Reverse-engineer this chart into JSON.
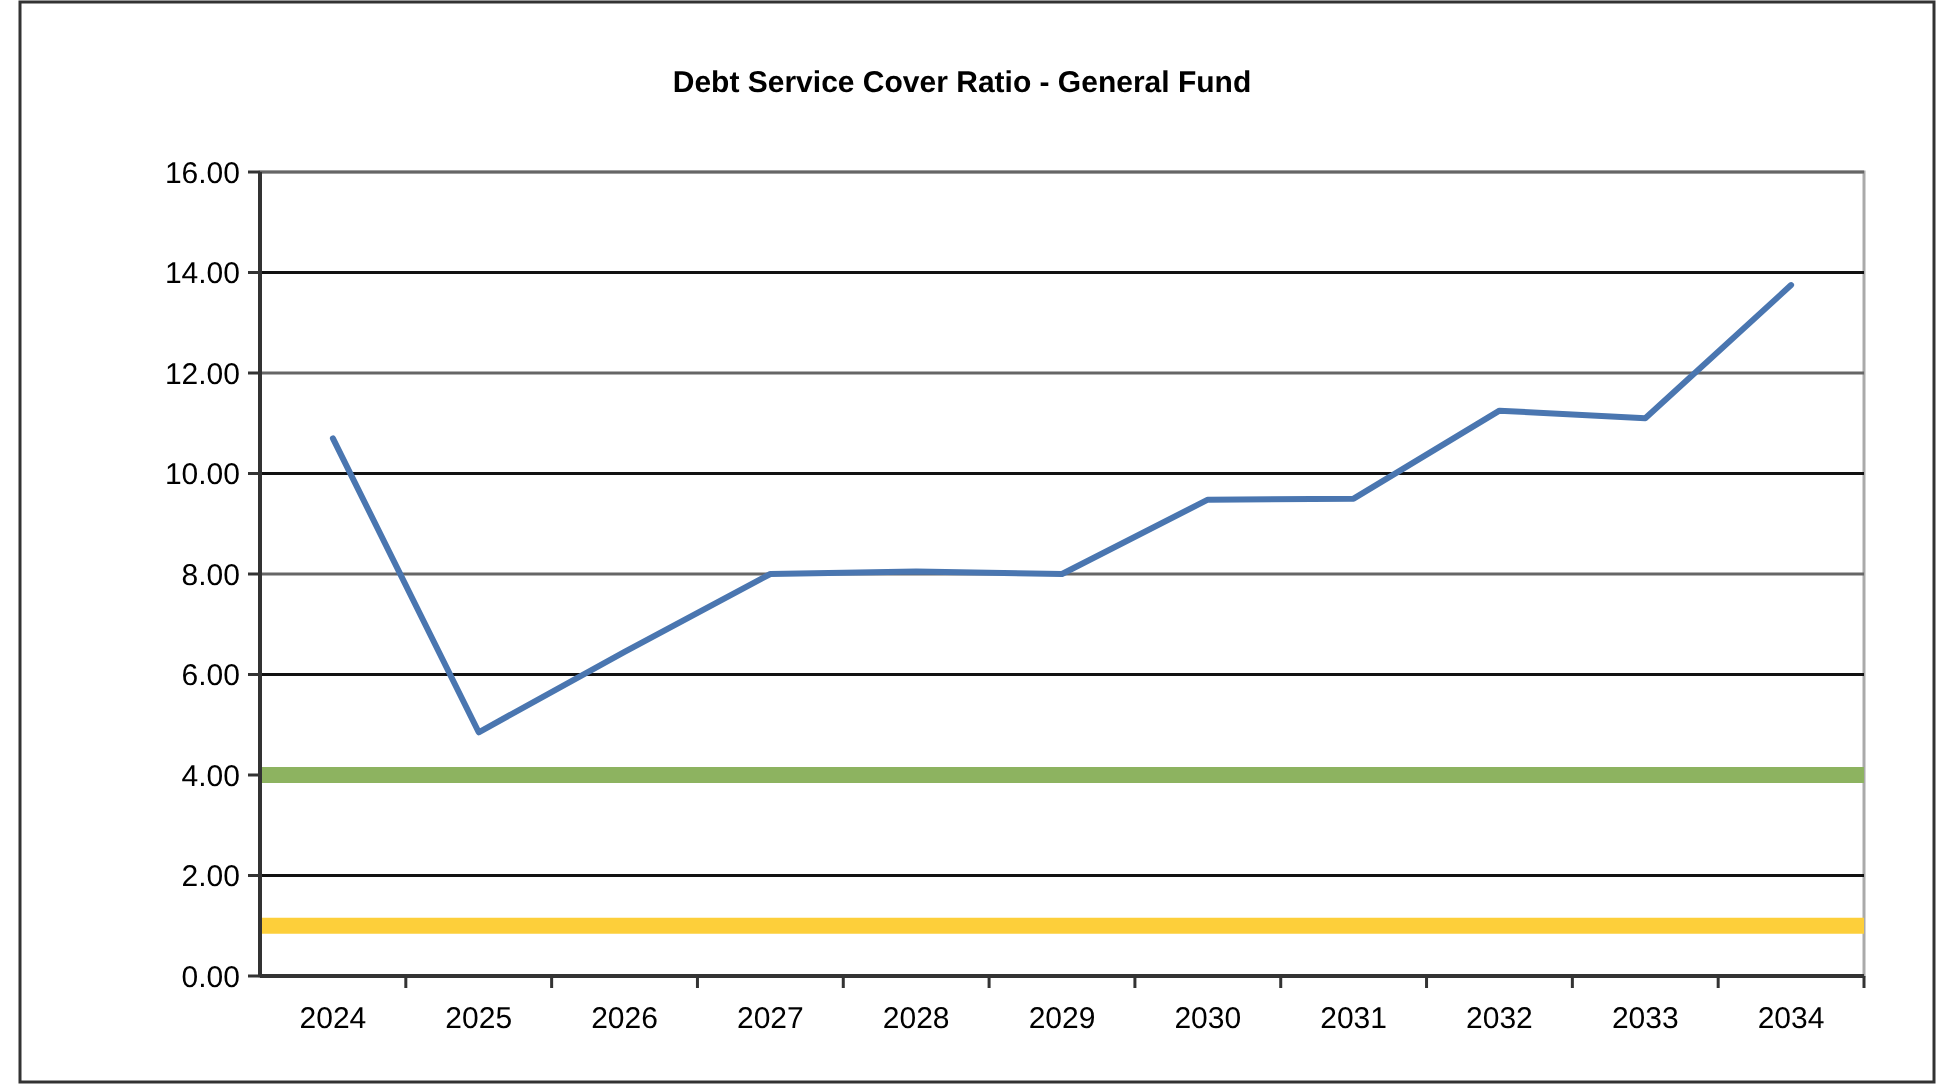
{
  "chart_data": {
    "type": "line",
    "title": "Debt Service Cover Ratio - General Fund",
    "categories": [
      "2024",
      "2025",
      "2026",
      "2027",
      "2028",
      "2029",
      "2030",
      "2031",
      "2032",
      "2033",
      "2034"
    ],
    "series": [
      {
        "color": "#4a76b0",
        "values": [
          10.7,
          4.85,
          6.45,
          8.0,
          8.05,
          8.0,
          9.48,
          9.5,
          11.25,
          11.1,
          13.75
        ]
      }
    ],
    "ylim": [
      0,
      16
    ],
    "yticks": [
      {
        "value": 0,
        "label": "0.00"
      },
      {
        "value": 2,
        "label": "2.00"
      },
      {
        "value": 4,
        "label": "4.00"
      },
      {
        "value": 6,
        "label": "6.00"
      },
      {
        "value": 8,
        "label": "8.00"
      },
      {
        "value": 10,
        "label": "10.00"
      },
      {
        "value": 12,
        "label": "12.00"
      },
      {
        "value": 14,
        "label": "14.00"
      },
      {
        "value": 16,
        "label": "16.00"
      }
    ],
    "ref_lines": [
      {
        "axis": "y",
        "value": 4,
        "color": "#8db360"
      },
      {
        "axis": "y",
        "value": 1,
        "color": "#fdcf3a"
      }
    ],
    "grid": "y",
    "marker": "none",
    "line_style": "solid"
  }
}
